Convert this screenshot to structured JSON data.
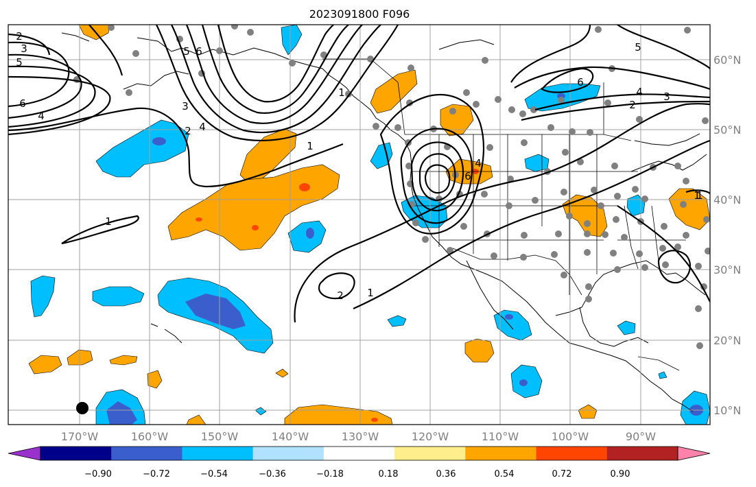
{
  "title": "2023091800 F096",
  "map": {
    "lon_labels": [
      "170°W",
      "160°W",
      "150°W",
      "140°W",
      "130°W",
      "120°W",
      "110°W",
      "100°W",
      "90°W"
    ],
    "lat_labels": [
      "60°N",
      "50°N",
      "40°N",
      "30°N",
      "20°N",
      "10°N"
    ],
    "grid": true
  },
  "colorbar": {
    "colors": [
      "#9932cc",
      "#00008b",
      "#3a5fcd",
      "#00bfff",
      "#b0e2ff",
      "#ffffff",
      "#ffee8c",
      "#ffa500",
      "#ff4500",
      "#b22222",
      "#ff82ab"
    ],
    "tick_labels": [
      "−0.90",
      "−0.72",
      "−0.54",
      "−0.36",
      "−0.18",
      "0.18",
      "0.36",
      "0.54",
      "0.72",
      "0.90"
    ]
  },
  "contour_labels": [
    "2",
    "3",
    "5",
    "6",
    "4",
    "5",
    "6",
    "3",
    "4",
    "2",
    "1",
    "6",
    "5",
    "4",
    "3",
    "2",
    "1",
    "1",
    "1",
    "2",
    "1",
    "4",
    "6",
    "1"
  ]
}
